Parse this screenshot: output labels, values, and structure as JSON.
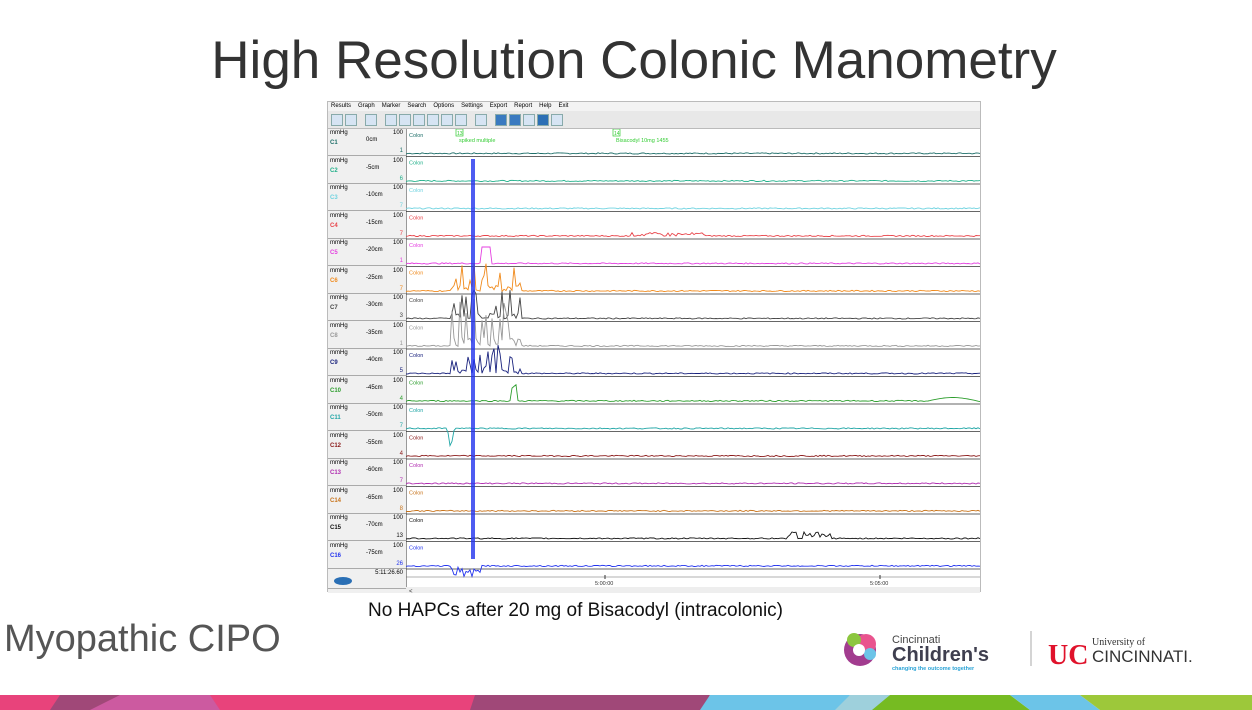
{
  "slide": {
    "title": "High Resolution Colonic Manometry",
    "caption": "No HAPCs after 20 mg of Bisacodyl (intracolonic)",
    "subtitle": "Myopathic CIPO"
  },
  "app": {
    "menu": [
      "Results",
      "Graph",
      "Marker",
      "Search",
      "Options",
      "Settings",
      "Export",
      "Report",
      "Help",
      "Exit"
    ],
    "unit": "mmHg",
    "scale_max": "100",
    "region": "Colon",
    "channels": [
      {
        "name": "C1",
        "depth": "0cm",
        "baseline": "1",
        "color": "#1f6f6a"
      },
      {
        "name": "C2",
        "depth": "-5cm",
        "baseline": "6",
        "color": "#22b08a"
      },
      {
        "name": "C3",
        "depth": "-10cm",
        "baseline": "7",
        "color": "#6fd3e0"
      },
      {
        "name": "C4",
        "depth": "-15cm",
        "baseline": "7",
        "color": "#e8444a"
      },
      {
        "name": "C5",
        "depth": "-20cm",
        "baseline": "1",
        "color": "#e43fe0"
      },
      {
        "name": "C6",
        "depth": "-25cm",
        "baseline": "7",
        "color": "#f08a1c"
      },
      {
        "name": "C7",
        "depth": "-30cm",
        "baseline": "3",
        "color": "#444444"
      },
      {
        "name": "C8",
        "depth": "-35cm",
        "baseline": "1",
        "color": "#999999"
      },
      {
        "name": "C9",
        "depth": "-40cm",
        "baseline": "5",
        "color": "#1a237e"
      },
      {
        "name": "C10",
        "depth": "-45cm",
        "baseline": "4",
        "color": "#2e9e2e"
      },
      {
        "name": "C11",
        "depth": "-50cm",
        "baseline": "7",
        "color": "#20a6a6"
      },
      {
        "name": "C12",
        "depth": "-55cm",
        "baseline": "4",
        "color": "#8b1a1a"
      },
      {
        "name": "C13",
        "depth": "-60cm",
        "baseline": "7",
        "color": "#b02cb0"
      },
      {
        "name": "C14",
        "depth": "-65cm",
        "baseline": "8",
        "color": "#c8741c"
      },
      {
        "name": "C15",
        "depth": "-70cm",
        "baseline": "13",
        "color": "#111111"
      },
      {
        "name": "C16",
        "depth": "-75cm",
        "baseline": "26",
        "color": "#2233ee"
      }
    ],
    "markers": [
      {
        "id": "13",
        "label": "spiked multiple"
      },
      {
        "id": "14",
        "label": "Bisacodyl 10mg 1455"
      }
    ],
    "cursor_time": "5:11:26.60",
    "time_ticks": [
      "5:00:00",
      "5:05:00"
    ],
    "scroll_left": "<"
  },
  "logos": {
    "cch_line1": "Cincinnati",
    "cch_line2": "Children's",
    "cch_tagline": "changing the outcome together",
    "uc_line1": "University of",
    "uc_line2": "CINCINNATI."
  }
}
